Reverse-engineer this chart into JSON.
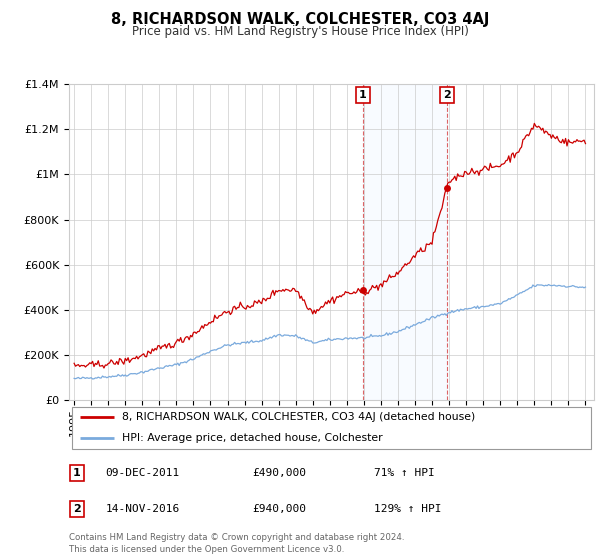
{
  "title": "8, RICHARDSON WALK, COLCHESTER, CO3 4AJ",
  "subtitle": "Price paid vs. HM Land Registry's House Price Index (HPI)",
  "hpi_color": "#7aaadd",
  "price_color": "#cc0000",
  "background_color": "#ffffff",
  "grid_color": "#cccccc",
  "highlight_fill": "#ddeeff",
  "marker1_x": 2011.92,
  "marker2_x": 2016.87,
  "marker1_value": 490000,
  "marker2_value": 940000,
  "ylim": [
    0,
    1400000
  ],
  "yticks": [
    0,
    200000,
    400000,
    600000,
    800000,
    1000000,
    1200000,
    1400000
  ],
  "ytick_labels": [
    "£0",
    "£200K",
    "£400K",
    "£600K",
    "£800K",
    "£1M",
    "£1.2M",
    "£1.4M"
  ],
  "xlim_left": 1994.7,
  "xlim_right": 2025.5,
  "legend_line1": "8, RICHARDSON WALK, COLCHESTER, CO3 4AJ (detached house)",
  "legend_line2": "HPI: Average price, detached house, Colchester",
  "annotation1_date": "09-DEC-2011",
  "annotation1_price": "£490,000",
  "annotation1_hpi": "71% ↑ HPI",
  "annotation2_date": "14-NOV-2016",
  "annotation2_price": "£940,000",
  "annotation2_hpi": "129% ↑ HPI",
  "footer1": "Contains HM Land Registry data © Crown copyright and database right 2024.",
  "footer2": "This data is licensed under the Open Government Licence v3.0."
}
